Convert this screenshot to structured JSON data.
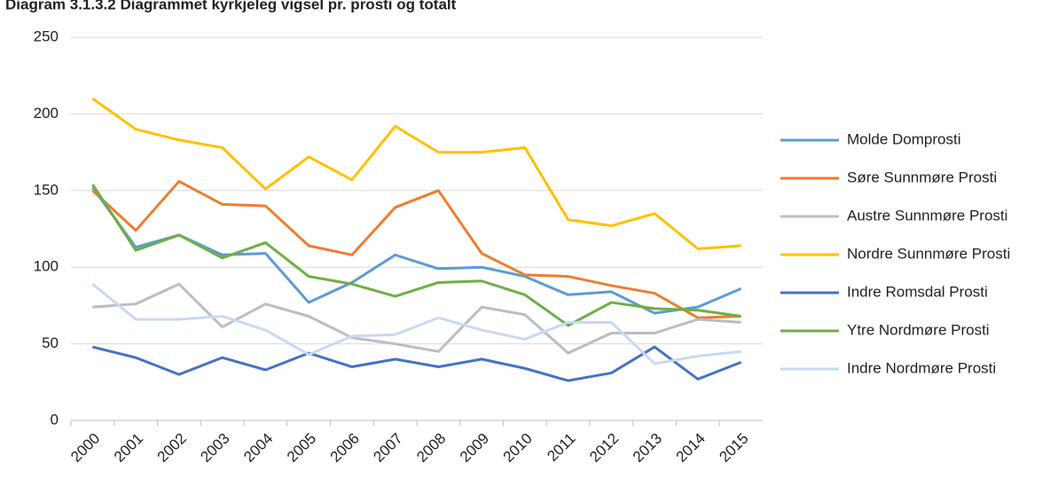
{
  "chart_data": {
    "type": "line",
    "title": "Diagram 3.1.3.2 Diagrammet kyrkjeleg vigsel pr. prosti og totalt",
    "categories": [
      "2000",
      "2001",
      "2002",
      "2003",
      "2004",
      "2005",
      "2006",
      "2007",
      "2008",
      "2009",
      "2010",
      "2011",
      "2012",
      "2013",
      "2014",
      "2015"
    ],
    "series": [
      {
        "name": "Molde Domprosti",
        "color": "#5b9bd5",
        "values": [
          152,
          113,
          121,
          108,
          109,
          77,
          90,
          108,
          99,
          100,
          94,
          82,
          84,
          70,
          74,
          86
        ]
      },
      {
        "name": "Søre Sunnmøre Prosti",
        "color": "#ed7d31",
        "values": [
          150,
          124,
          156,
          141,
          140,
          114,
          108,
          139,
          150,
          109,
          95,
          94,
          88,
          83,
          67,
          68
        ]
      },
      {
        "name": "Austre Sunnmøre Prosti",
        "color": "#bcbcc4",
        "values": [
          74,
          76,
          89,
          61,
          76,
          68,
          54,
          50,
          45,
          74,
          69,
          44,
          57,
          57,
          66,
          64
        ]
      },
      {
        "name": "Nordre Sunnmøre Prosti",
        "color": "#ffc000",
        "values": [
          210,
          190,
          183,
          178,
          151,
          172,
          157,
          192,
          175,
          175,
          178,
          131,
          127,
          135,
          112,
          114
        ]
      },
      {
        "name": "Indre Romsdal Prosti",
        "color": "#4472c4",
        "values": [
          48,
          41,
          30,
          41,
          33,
          44,
          35,
          40,
          35,
          40,
          34,
          26,
          31,
          48,
          27,
          38
        ]
      },
      {
        "name": "Ytre Nordmøre Prosti",
        "color": "#70ad47",
        "values": [
          154,
          111,
          121,
          106,
          116,
          94,
          89,
          81,
          90,
          91,
          82,
          62,
          77,
          73,
          72,
          68
        ]
      },
      {
        "name": "Indre Nordmøre Prosti",
        "color": "#c9d8f2",
        "values": [
          89,
          66,
          66,
          68,
          59,
          43,
          55,
          56,
          67,
          59,
          53,
          64,
          64,
          37,
          42,
          45
        ]
      }
    ],
    "ylim": [
      0,
      250
    ],
    "yticks": [
      0,
      50,
      100,
      150,
      200,
      250
    ],
    "grid": true,
    "legend": "right"
  }
}
